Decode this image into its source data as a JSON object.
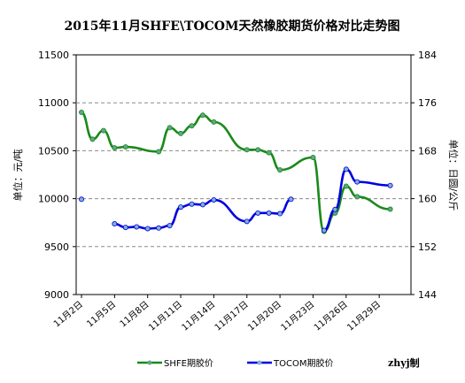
{
  "chart_data": {
    "type": "line",
    "title": "2015年11月SHFE\\TOCOM天然橡胶期货价格对比走势图",
    "ylabel_left": "单位：元/吨",
    "ylabel_right": "单位：日圆/公斤",
    "credit": "zhyj制",
    "grid": "horizontal dashed",
    "legend_position": "bottom",
    "y_left": {
      "min": 9000,
      "max": 11500,
      "ticks": [
        9000,
        9500,
        10000,
        10500,
        11000,
        11500
      ]
    },
    "y_right": {
      "min": 144,
      "max": 184,
      "ticks": [
        144,
        152,
        160,
        168,
        176,
        184
      ]
    },
    "x_range": [
      2,
      32
    ],
    "x_ticks": [
      2,
      5,
      8,
      11,
      14,
      17,
      20,
      23,
      26,
      29
    ],
    "x_tick_labels": [
      "11月2日",
      "11月5日",
      "11月8日",
      "11月11日",
      "11月14日",
      "11月17日",
      "11月20日",
      "11月23日",
      "11月26日",
      "11月29日"
    ],
    "series": [
      {
        "name": "SHFE期胶价",
        "axis": "left",
        "color": "#1a8a1a",
        "marker_color": "#5fa58c",
        "x": [
          2,
          3,
          4,
          5,
          6,
          9,
          10,
          11,
          12,
          13,
          14,
          17,
          18,
          19,
          20,
          23,
          24,
          25,
          26,
          27,
          30
        ],
        "values": [
          10900,
          10620,
          10710,
          10530,
          10540,
          10490,
          10740,
          10680,
          10760,
          10870,
          10800,
          10510,
          10510,
          10480,
          10300,
          10430,
          9660,
          9850,
          10130,
          10020,
          9890
        ],
        "path_only": [
          null,
          null,
          null,
          null,
          null,
          null,
          null,
          null,
          null,
          null,
          null,
          null,
          null,
          null,
          null,
          null,
          null,
          null,
          null,
          null,
          null
        ]
      },
      {
        "name": "TOCOM期胶价",
        "axis": "right",
        "color": "#0000e0",
        "marker_color": "#7fb0d0",
        "segments": [
          {
            "x": [
              2
            ],
            "values": [
              159.9
            ]
          },
          {
            "x": [
              5,
              6,
              7,
              8,
              9,
              10,
              11,
              12,
              13,
              14,
              17,
              18,
              19,
              20,
              21
            ],
            "values": [
              155.8,
              155.2,
              155.3,
              155.0,
              155.1,
              155.5,
              158.6,
              159.1,
              159.0,
              159.8,
              156.2,
              157.6,
              157.6,
              157.5,
              159.9
            ]
          },
          {
            "x": [
              24,
              25,
              26,
              27,
              30
            ],
            "values": [
              154.7,
              158.2,
              164.9,
              162.8,
              162.2
            ]
          }
        ]
      }
    ]
  }
}
